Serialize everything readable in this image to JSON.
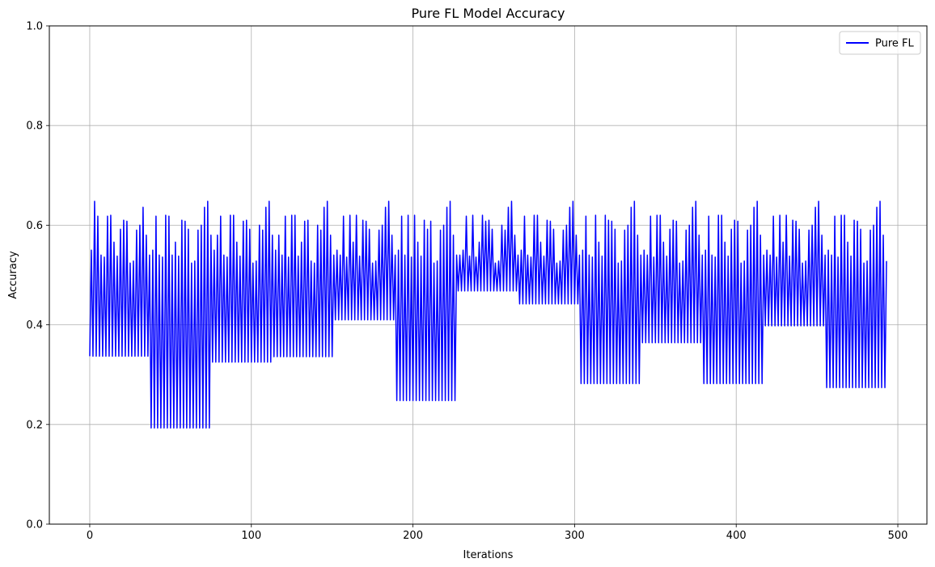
{
  "chart_data": {
    "type": "line",
    "title": "Pure FL Model Accuracy",
    "xlabel": "Iterations",
    "ylabel": "Accuracy",
    "xlim": [
      -25,
      518
    ],
    "ylim": [
      0,
      1
    ],
    "xticks": [
      0,
      100,
      200,
      300,
      400,
      500
    ],
    "yticks": [
      0.0,
      0.2,
      0.4,
      0.6,
      0.8,
      1.0
    ],
    "xtick_labels": [
      "0",
      "100",
      "200",
      "300",
      "400",
      "500"
    ],
    "ytick_labels": [
      "0.0",
      "0.2",
      "0.4",
      "0.6",
      "0.8",
      "1.0"
    ],
    "grid": true,
    "legend_position": "top-right",
    "series": [
      {
        "name": "Pure FL",
        "color": "#0000ff",
        "x_start": 0,
        "x_step": 1,
        "client_round_length": 38,
        "rounds": [
          {
            "floor": 0.337,
            "peaks": [
              0.55,
              0.648,
              0.618,
              0.54,
              0.536,
              0.618,
              0.62,
              0.566,
              0.538,
              0.592,
              0.61,
              0.608,
              0.524,
              0.528,
              0.59,
              0.6,
              0.636,
              0.58,
              0.54
            ]
          },
          {
            "floor": 0.193,
            "peaks": [
              0.55,
              0.618,
              0.54,
              0.536,
              0.62,
              0.618,
              0.54,
              0.566,
              0.538,
              0.61,
              0.608,
              0.592,
              0.524,
              0.528,
              0.59,
              0.6,
              0.636,
              0.648,
              0.58
            ]
          },
          {
            "floor": 0.325,
            "peaks": [
              0.55,
              0.58,
              0.618,
              0.54,
              0.536,
              0.62,
              0.62,
              0.566,
              0.538,
              0.608,
              0.61,
              0.592,
              0.524,
              0.528,
              0.6,
              0.59,
              0.636,
              0.648,
              0.58
            ]
          },
          {
            "floor": 0.336,
            "peaks": [
              0.55,
              0.58,
              0.54,
              0.618,
              0.536,
              0.62,
              0.62,
              0.538,
              0.566,
              0.608,
              0.61,
              0.528,
              0.524,
              0.6,
              0.59,
              0.636,
              0.648,
              0.58,
              0.54
            ]
          },
          {
            "floor": 0.41,
            "peaks": [
              0.55,
              0.54,
              0.618,
              0.536,
              0.62,
              0.566,
              0.62,
              0.538,
              0.61,
              0.608,
              0.592,
              0.524,
              0.528,
              0.59,
              0.6,
              0.636,
              0.648,
              0.58,
              0.54
            ]
          },
          {
            "floor": 0.248,
            "peaks": [
              0.55,
              0.618,
              0.54,
              0.62,
              0.536,
              0.62,
              0.566,
              0.538,
              0.61,
              0.592,
              0.608,
              0.524,
              0.528,
              0.59,
              0.6,
              0.636,
              0.648,
              0.58,
              0.54
            ]
          },
          {
            "floor": 0.468,
            "peaks": [
              0.54,
              0.55,
              0.618,
              0.538,
              0.62,
              0.536,
              0.566,
              0.62,
              0.608,
              0.61,
              0.592,
              0.524,
              0.528,
              0.6,
              0.59,
              0.636,
              0.648,
              0.58,
              0.54
            ]
          },
          {
            "floor": 0.442,
            "peaks": [
              0.55,
              0.618,
              0.54,
              0.536,
              0.62,
              0.62,
              0.566,
              0.538,
              0.61,
              0.608,
              0.592,
              0.524,
              0.528,
              0.59,
              0.6,
              0.636,
              0.648,
              0.58,
              0.54
            ]
          },
          {
            "floor": 0.282,
            "peaks": [
              0.55,
              0.618,
              0.54,
              0.536,
              0.62,
              0.566,
              0.538,
              0.62,
              0.61,
              0.608,
              0.592,
              0.524,
              0.528,
              0.59,
              0.6,
              0.636,
              0.648,
              0.58,
              0.54
            ]
          },
          {
            "floor": 0.364,
            "peaks": [
              0.55,
              0.54,
              0.618,
              0.536,
              0.62,
              0.62,
              0.566,
              0.538,
              0.592,
              0.61,
              0.608,
              0.524,
              0.528,
              0.59,
              0.6,
              0.636,
              0.648,
              0.58,
              0.54
            ]
          },
          {
            "floor": 0.282,
            "peaks": [
              0.55,
              0.618,
              0.54,
              0.536,
              0.62,
              0.62,
              0.566,
              0.538,
              0.592,
              0.61,
              0.608,
              0.524,
              0.528,
              0.59,
              0.6,
              0.636,
              0.648,
              0.58,
              0.54
            ]
          },
          {
            "floor": 0.398,
            "peaks": [
              0.55,
              0.54,
              0.618,
              0.536,
              0.62,
              0.566,
              0.62,
              0.538,
              0.61,
              0.608,
              0.592,
              0.524,
              0.528,
              0.59,
              0.6,
              0.636,
              0.648,
              0.58,
              0.54
            ]
          },
          {
            "floor": 0.274,
            "peaks": [
              0.55,
              0.54,
              0.618,
              0.536,
              0.62,
              0.62,
              0.566,
              0.538,
              0.61,
              0.608,
              0.592,
              0.524,
              0.528,
              0.59,
              0.6,
              0.636,
              0.648,
              0.58,
              0.528
            ]
          }
        ],
        "last_x": 493
      }
    ]
  }
}
